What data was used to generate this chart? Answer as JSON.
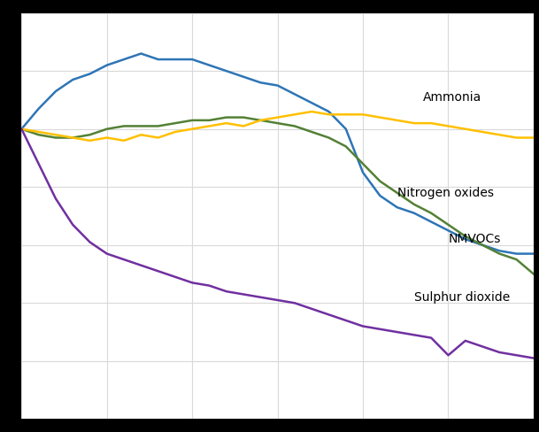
{
  "years": [
    1990,
    1991,
    1992,
    1993,
    1994,
    1995,
    1996,
    1997,
    1998,
    1999,
    2000,
    2001,
    2002,
    2003,
    2004,
    2005,
    2006,
    2007,
    2008,
    2009,
    2010,
    2011,
    2012,
    2013,
    2014,
    2015,
    2016,
    2017,
    2018,
    2019,
    2020
  ],
  "nox": [
    100,
    98,
    97,
    97,
    98,
    100,
    101,
    101,
    101,
    102,
    103,
    103,
    104,
    104,
    103,
    102,
    101,
    99,
    97,
    94,
    88,
    82,
    78,
    74,
    71,
    67,
    63,
    60,
    57,
    55,
    50
  ],
  "so2": [
    100,
    88,
    76,
    67,
    61,
    57,
    55,
    53,
    51,
    49,
    47,
    46,
    44,
    43,
    42,
    41,
    40,
    38,
    36,
    34,
    32,
    31,
    30,
    29,
    28,
    22,
    27,
    25,
    23,
    22,
    21
  ],
  "nh3": [
    100,
    99,
    98,
    97,
    96,
    97,
    96,
    98,
    97,
    99,
    100,
    101,
    102,
    101,
    103,
    104,
    105,
    106,
    105,
    105,
    105,
    104,
    103,
    102,
    102,
    101,
    100,
    99,
    98,
    97,
    97
  ],
  "nmvoc": [
    100,
    107,
    113,
    117,
    119,
    122,
    124,
    126,
    124,
    124,
    124,
    122,
    120,
    118,
    116,
    115,
    112,
    109,
    106,
    100,
    85,
    77,
    73,
    71,
    68,
    65,
    62,
    60,
    58,
    57,
    57
  ],
  "nox_color": "#538135",
  "so2_color": "#7030a0",
  "nh3_color": "#ffc000",
  "nmvoc_color": "#2e75b6",
  "fig_bg_color": "#000000",
  "plot_bg_color": "#ffffff",
  "grid_color": "#d9d9d9",
  "label_ammonia": "Ammonia",
  "label_nox": "Nitrogen oxides",
  "label_nmvoc": "NMVOCs",
  "label_so2": "Sulphur dioxide",
  "font_size_annotations": 10,
  "xlim_min": 1990,
  "xlim_max": 2020,
  "ylim_min": 0,
  "ylim_max": 140,
  "linewidth": 1.8
}
